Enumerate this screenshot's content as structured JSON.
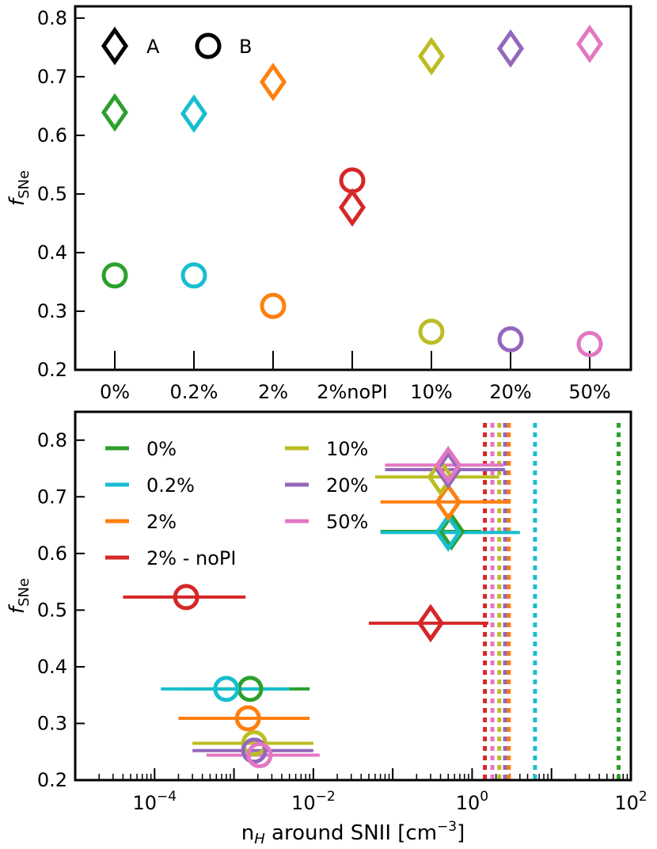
{
  "colors": {
    "0%": "#2ca02c",
    "0.2%": "#17becf",
    "2%": "#ff7f0e",
    "2%noPI": "#d62728",
    "10%": "#bcbd22",
    "20%": "#9467bd",
    "50%": "#e377c2"
  },
  "chart_data": [
    {
      "type": "scatter",
      "categories": [
        "0%",
        "0.2%",
        "2%",
        "2%noPI",
        "10%",
        "20%",
        "50%"
      ],
      "series": [
        {
          "name": "A",
          "marker": "diamond",
          "values": [
            0.639,
            0.637,
            0.691,
            0.477,
            0.735,
            0.748,
            0.756
          ]
        },
        {
          "name": "B",
          "marker": "circle",
          "values": [
            0.361,
            0.361,
            0.309,
            0.523,
            0.265,
            0.252,
            0.244
          ]
        }
      ],
      "ylabel_main": "f",
      "ylabel_sub": "SNe",
      "ylim": [
        0.2,
        0.82
      ],
      "yticks": [
        "0.2",
        "0.3",
        "0.4",
        "0.5",
        "0.6",
        "0.7",
        "0.8"
      ],
      "legend": {
        "position": "upper-left",
        "entries": [
          "A",
          "B"
        ]
      }
    },
    {
      "type": "scatter",
      "xscale": "log",
      "xlim": [
        1e-05,
        100
      ],
      "xticks": [
        {
          "value": 0.0001,
          "base": "10",
          "exp": "−4"
        },
        {
          "value": 0.01,
          "base": "10",
          "exp": "−2"
        },
        {
          "value": 1,
          "base": "10",
          "exp": "0"
        },
        {
          "value": 100,
          "base": "10",
          "exp": "2"
        }
      ],
      "ylim": [
        0.2,
        0.85
      ],
      "yticks": [
        "0.2",
        "0.3",
        "0.4",
        "0.5",
        "0.6",
        "0.7",
        "0.8"
      ],
      "xlabel_pre": "n",
      "xlabel_sub": "H",
      "xlabel_post": " around SNII [cm",
      "xlabel_sup": "−3",
      "xlabel_end": "]",
      "ylabel_main": "f",
      "ylabel_sub": "SNe",
      "series": [
        {
          "name": "0%",
          "key": "0%",
          "A": {
            "x": 0.55,
            "y": 0.639,
            "xerr": [
              0.07,
              1.3
            ]
          },
          "B": {
            "x": 0.0016,
            "y": 0.361,
            "xerr": [
              0.0002,
              0.009
            ]
          },
          "vline": 70
        },
        {
          "name": "0.2%",
          "key": "0.2%",
          "A": {
            "x": 0.5,
            "y": 0.637,
            "xerr": [
              0.07,
              4.0
            ]
          },
          "B": {
            "x": 0.0008,
            "y": 0.361,
            "xerr": [
              0.00012,
              0.005
            ]
          },
          "vline": 6.2
        },
        {
          "name": "2%",
          "key": "2%",
          "A": {
            "x": 0.5,
            "y": 0.691,
            "xerr": [
              0.07,
              3.0
            ]
          },
          "B": {
            "x": 0.0015,
            "y": 0.309,
            "xerr": [
              0.0002,
              0.009
            ]
          },
          "vline": 2.9
        },
        {
          "name": "2% - noPI",
          "key": "2%noPI",
          "A": {
            "x": 0.3,
            "y": 0.477,
            "xerr": [
              0.05,
              1.6
            ]
          },
          "B": {
            "x": 0.00025,
            "y": 0.523,
            "xerr": [
              4e-05,
              0.0014
            ]
          },
          "vline": 1.45
        },
        {
          "name": "10%",
          "key": "10%",
          "A": {
            "x": 0.4,
            "y": 0.735,
            "xerr": [
              0.06,
              2.2
            ]
          },
          "B": {
            "x": 0.0018,
            "y": 0.265,
            "xerr": [
              0.0003,
              0.01
            ]
          },
          "vline": 2.2
        },
        {
          "name": "20%",
          "key": "20%",
          "A": {
            "x": 0.5,
            "y": 0.748,
            "xerr": [
              0.08,
              2.6
            ]
          },
          "B": {
            "x": 0.0018,
            "y": 0.252,
            "xerr": [
              0.0003,
              0.01
            ]
          },
          "vline": 2.6
        },
        {
          "name": "50%",
          "key": "50%",
          "A": {
            "x": 0.5,
            "y": 0.756,
            "xerr": [
              0.08,
              2.5
            ]
          },
          "B": {
            "x": 0.0021,
            "y": 0.244,
            "xerr": [
              0.00045,
              0.012
            ]
          },
          "vline": 1.8
        }
      ],
      "legend": {
        "position": "upper-left",
        "columns": 2,
        "entries": [
          "0%",
          "0.2%",
          "2%",
          "2% - noPI",
          "10%",
          "20%",
          "50%"
        ]
      }
    }
  ]
}
